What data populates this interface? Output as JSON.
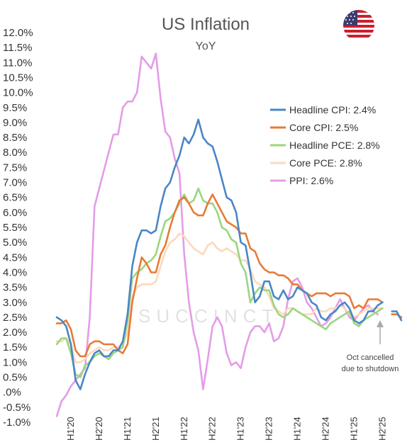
{
  "chart_data": {
    "type": "line",
    "title": "US Inflation",
    "subtitle": "YoY",
    "y_ticks": [
      "12.0%",
      "11.5%",
      "11.0%",
      "10.5%",
      "10.0%",
      "9.5%",
      "9.0%",
      "8.5%",
      "8.0%",
      "7.5%",
      "7.0%",
      "6.5%",
      "6.0%",
      "5.5%",
      "5.0%",
      "4.5%",
      "4.0%",
      "3.5%",
      "3.0%",
      "2.5%",
      "2.0%",
      "1.5%",
      "1.0%",
      "0.5%",
      ".0%",
      "-0.5%",
      "-1.0%"
    ],
    "ylim": [
      -1.0,
      12.0
    ],
    "x_ticks": [
      "H1'20",
      "H2'20",
      "H1'21",
      "H2'21",
      "H1'22",
      "H2'22",
      "H1'23",
      "H2'23",
      "H1'24",
      "H2'24",
      "H1'25",
      "H2'25"
    ],
    "x_start": "2019-10",
    "x_end": "2025-11",
    "series": [
      {
        "name": "Headline CPI: 2.4%",
        "color": "#4a86c5",
        "values": [
          2.5,
          2.4,
          2.2,
          1.6,
          0.4,
          0.1,
          0.6,
          1.0,
          1.3,
          1.4,
          1.2,
          1.2,
          1.4,
          1.4,
          1.7,
          2.6,
          4.2,
          5.0,
          5.4,
          5.4,
          5.3,
          5.4,
          6.2,
          6.8,
          7.0,
          7.5,
          7.9,
          8.5,
          8.3,
          8.6,
          9.1,
          8.5,
          8.3,
          8.2,
          7.7,
          7.1,
          6.5,
          6.4,
          6.0,
          5.0,
          4.9,
          4.0,
          3.0,
          3.2,
          3.7,
          3.7,
          3.2,
          3.1,
          3.4,
          3.1,
          3.2,
          3.5,
          3.4,
          3.3,
          3.0,
          2.9,
          2.5,
          2.4,
          2.6,
          2.7,
          2.9,
          3.0,
          2.8,
          2.4,
          2.3,
          2.4,
          2.7,
          2.7,
          2.9,
          3.0,
          null,
          2.7,
          2.7,
          2.4
        ],
        "gap_note": "no October 2025 reading"
      },
      {
        "name": "Core CPI: 2.5%",
        "color": "#e87a35",
        "values": [
          2.3,
          2.3,
          2.4,
          2.1,
          1.4,
          1.2,
          1.2,
          1.6,
          1.7,
          1.7,
          1.6,
          1.6,
          1.6,
          1.4,
          1.3,
          1.6,
          3.0,
          3.8,
          4.5,
          4.3,
          4.0,
          4.0,
          4.6,
          4.9,
          5.5,
          6.0,
          6.4,
          6.5,
          6.3,
          6.0,
          5.9,
          5.9,
          6.3,
          6.6,
          6.3,
          6.0,
          5.7,
          5.6,
          5.5,
          5.3,
          5.3,
          4.8,
          4.7,
          4.3,
          4.1,
          4.0,
          4.0,
          3.9,
          3.9,
          3.8,
          3.6,
          3.6,
          3.4,
          3.3,
          3.2,
          3.3,
          3.3,
          3.3,
          3.2,
          3.3,
          3.3,
          3.3,
          3.2,
          2.8,
          2.9,
          2.8,
          3.1,
          3.1,
          3.1,
          3.0,
          null,
          2.6,
          2.6,
          2.5
        ],
        "gap_note": "no October 2025 reading"
      },
      {
        "name": "Headline PCE: 2.8%",
        "color": "#9bd67e",
        "values": [
          1.6,
          1.8,
          1.8,
          1.3,
          0.6,
          0.5,
          0.9,
          1.0,
          1.2,
          1.3,
          1.2,
          1.1,
          1.3,
          1.4,
          1.5,
          2.4,
          3.8,
          4.0,
          4.1,
          4.3,
          4.4,
          4.6,
          5.2,
          5.7,
          5.8,
          6.0,
          6.3,
          6.6,
          6.3,
          6.4,
          6.8,
          6.4,
          6.3,
          6.3,
          6.0,
          5.5,
          5.4,
          5.1,
          5.0,
          4.3,
          4.0,
          3.0,
          3.3,
          3.5,
          3.4,
          3.4,
          2.9,
          2.6,
          2.5,
          2.6,
          2.8,
          2.7,
          2.6,
          2.5,
          2.4,
          2.3,
          2.2,
          2.1,
          2.3,
          2.4,
          2.5,
          2.6,
          2.7,
          2.3,
          2.2,
          2.4,
          2.5,
          2.6,
          2.7,
          2.8
        ]
      },
      {
        "name": "Core PCE: 2.8%",
        "color": "#fbd9bd",
        "values": [
          1.7,
          1.7,
          1.8,
          1.6,
          1.0,
          1.0,
          1.1,
          1.3,
          1.4,
          1.5,
          1.4,
          1.4,
          1.5,
          1.5,
          1.6,
          2.0,
          3.2,
          3.5,
          3.6,
          3.6,
          3.6,
          3.7,
          4.2,
          4.7,
          5.0,
          5.1,
          5.3,
          5.2,
          5.0,
          4.8,
          4.7,
          4.6,
          4.9,
          5.0,
          4.8,
          4.7,
          4.8,
          4.7,
          4.6,
          4.4,
          4.4,
          4.1,
          3.7,
          3.6,
          3.5,
          3.2,
          2.8,
          2.7,
          2.6,
          2.8,
          2.8,
          2.7,
          2.6,
          2.6,
          2.6,
          2.8,
          2.7,
          2.7,
          2.8,
          2.8,
          2.9,
          2.8,
          2.6,
          2.5,
          2.6,
          2.7,
          2.8,
          2.8,
          2.8,
          2.8
        ]
      },
      {
        "name": "PPI: 2.6%",
        "color": "#e49ce8",
        "values": [
          -0.8,
          -0.3,
          -0.1,
          0.2,
          0.4,
          0.6,
          0.8,
          2.5,
          6.2,
          6.8,
          7.4,
          8.0,
          8.6,
          8.6,
          9.5,
          9.7,
          9.7,
          10.0,
          11.2,
          11.0,
          10.8,
          11.3,
          9.8,
          8.7,
          8.5,
          7.8,
          7.3,
          4.6,
          3.0,
          2.0,
          1.4,
          0.1,
          1.1,
          2.2,
          2.5,
          2.2,
          1.3,
          0.9,
          1.0,
          0.8,
          1.5,
          2.0,
          2.2,
          2.2,
          2.0,
          2.3,
          1.7,
          1.8,
          2.2,
          3.1,
          3.7,
          3.8,
          3.5,
          3.0,
          2.8,
          2.5,
          2.2,
          2.3,
          2.5,
          2.8,
          3.1,
          2.8,
          2.5,
          2.4,
          2.6,
          2.8,
          2.9,
          2.7,
          2.6
        ]
      }
    ],
    "legend_position": "upper-right",
    "annotation": "Oct cancelled due to shutdown",
    "annotation_lines": [
      "Oct cancelled",
      "due to shutdown"
    ],
    "watermark": "SUCCINCT"
  },
  "flag_icon": "us-flag-icon"
}
